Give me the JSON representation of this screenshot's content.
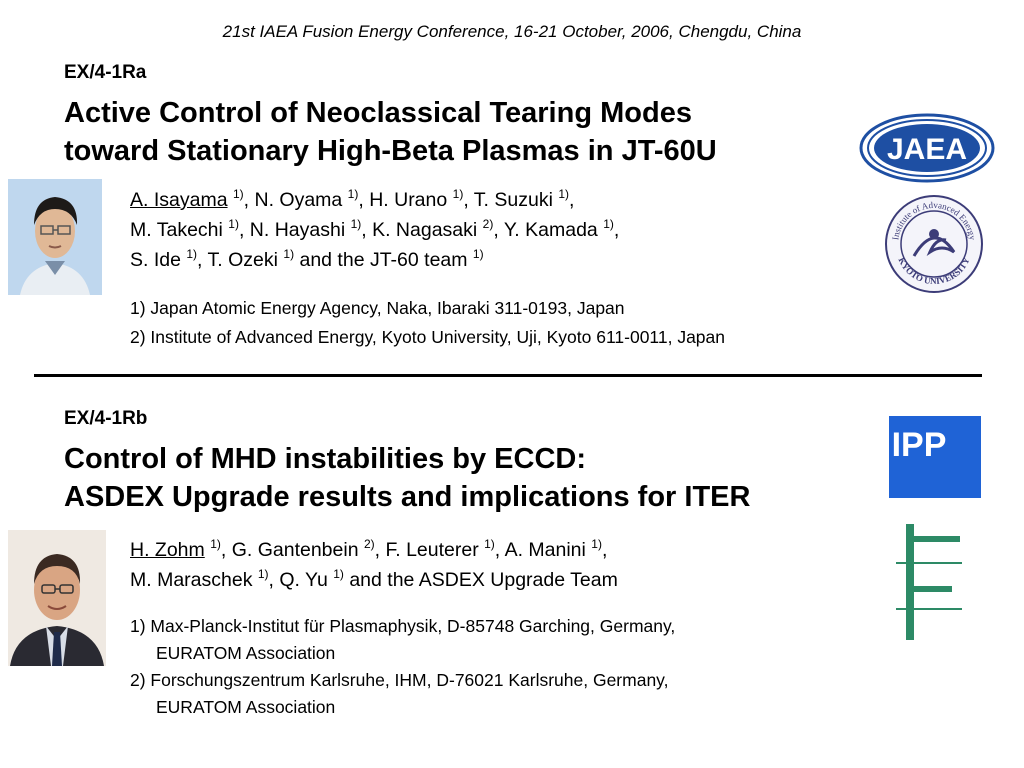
{
  "conference": "21st IAEA Fusion Energy Conference, 16-21 October, 2006, Chengdu, China",
  "talk_a": {
    "code": "EX/4-1Ra",
    "title_lines": [
      "Active Control of Neoclassical Tearing Modes",
      "toward Stationary High-Beta Plasmas in JT-60U"
    ],
    "authors_lines": [
      [
        {
          "name": "A. Isayama",
          "sup": "1)",
          "presenter": true,
          "sep": ", "
        },
        {
          "name": "N. Oyama",
          "sup": "1)",
          "sep": ", "
        },
        {
          "name": "H. Urano",
          "sup": "1)",
          "sep": ", "
        },
        {
          "name": "T. Suzuki",
          "sup": "1)",
          "sep": ","
        }
      ],
      [
        {
          "name": "M. Takechi",
          "sup": "1)",
          "sep": ", "
        },
        {
          "name": "N. Hayashi",
          "sup": "1)",
          "sep": ", "
        },
        {
          "name": "K. Nagasaki",
          "sup": "2)",
          "sep": ", "
        },
        {
          "name": "Y. Kamada",
          "sup": "1)",
          "sep": ","
        }
      ],
      [
        {
          "name": "S. Ide",
          "sup": "1)",
          "sep": ", "
        },
        {
          "name": "T. Ozeki",
          "sup": "1)",
          "sep": " and the JT-60 team "
        },
        {
          "name": "",
          "sup": "1)",
          "sep": ""
        }
      ]
    ],
    "affiliations": [
      "1) Japan Atomic Energy Agency, Naka, Ibaraki 311-0193, Japan",
      "2) Institute of Advanced Energy, Kyoto University, Uji, Kyoto 611-0011, Japan"
    ],
    "logo_jaea": "JAEA",
    "seal_text_top": "Institute of Advanced Energy",
    "seal_text_bottom": "KYOTO UNIVERSITY"
  },
  "talk_b": {
    "code": "EX/4-1Rb",
    "title_lines": [
      "Control of MHD instabilities by ECCD:",
      "ASDEX Upgrade results and implications for ITER"
    ],
    "authors_lines": [
      [
        {
          "name": "H. Zohm",
          "sup": "1)",
          "presenter": true,
          "sep": ", "
        },
        {
          "name": "G. Gantenbein",
          "sup": "2)",
          "sep": ", "
        },
        {
          "name": "F. Leuterer",
          "sup": "1)",
          "sep": ", "
        },
        {
          "name": "A. Manini",
          "sup": "1)",
          "sep": ","
        }
      ],
      [
        {
          "name": "M. Maraschek",
          "sup": "1)",
          "sep": ", "
        },
        {
          "name": "Q. Yu",
          "sup": "1)",
          "sep": " and the ASDEX Upgrade Team"
        }
      ]
    ],
    "affiliations": [
      {
        "line1": "1) Max-Planck-Institut für Plasmaphysik, D-85748 Garching, Germany,",
        "line2": "EURATOM Association"
      },
      {
        "line1": "2) Forschungszentrum Karlsruhe, IHM, D-76021 Karlsruhe, Germany,",
        "line2": "EURATOM Association"
      }
    ],
    "logo_ipp": "IPP",
    "colors": {
      "ipp_blue": "#1f63d6",
      "fzk_green": "#2d8a66",
      "jaea_blue": "#1e4fa3"
    }
  }
}
